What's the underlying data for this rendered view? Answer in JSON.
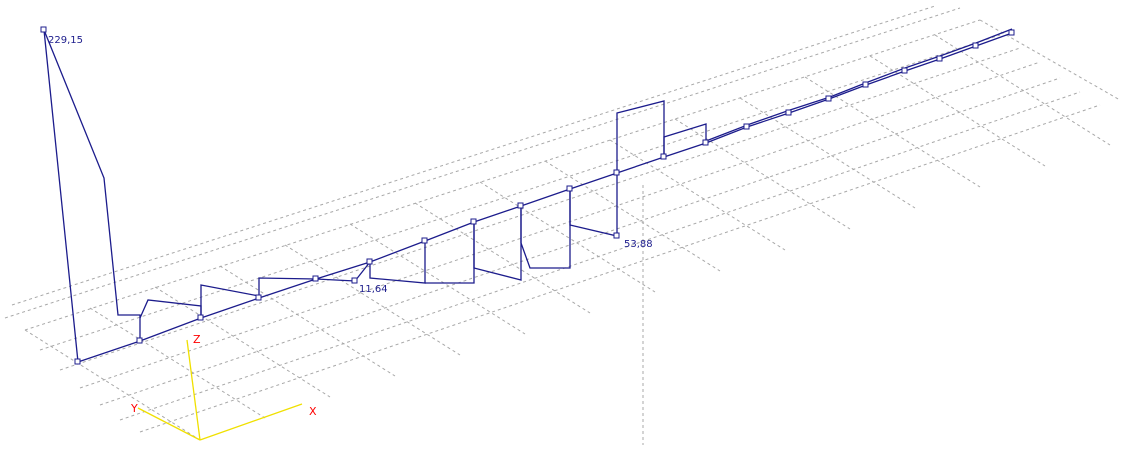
{
  "view": {
    "type": "3d-structural-diagram",
    "grid_dashed": true
  },
  "diagram": {
    "line_color": "#1c1c8c",
    "grid_color": "#a8a8a8",
    "annotations": {
      "max_value": "229,15",
      "mid_value": "11,64",
      "support_value": "53,88"
    }
  },
  "axes": {
    "x_label": "X",
    "y_label": "Y",
    "z_label": "Z",
    "x_color": "#ff0000",
    "y_color": "#ff0000",
    "z_color": "#ff0000",
    "line_color": "#f0e000"
  }
}
